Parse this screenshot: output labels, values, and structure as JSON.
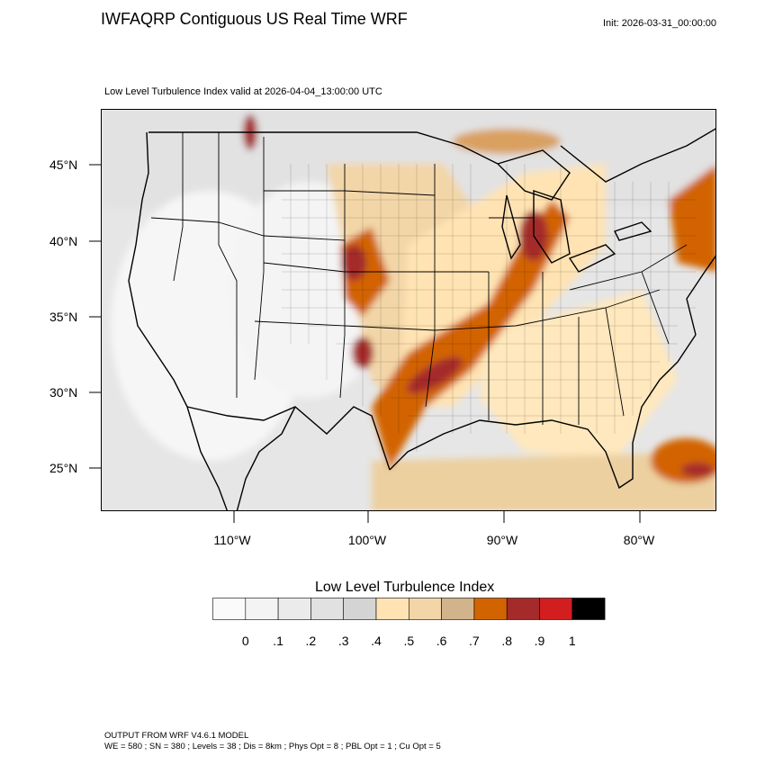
{
  "header": {
    "title": "IWFAQRP Contiguous US Real Time WRF",
    "init": "Init: 2026-03-31_00:00:00",
    "subtitle": "Low Level Turbulence Index valid at 2026-04-04_13:00:00 UTC"
  },
  "axes": {
    "lat_labels": [
      "45°N",
      "40°N",
      "35°N",
      "30°N",
      "25°N"
    ],
    "lon_labels": [
      "110°W",
      "100°W",
      "90°W",
      "80°W"
    ]
  },
  "colorbar": {
    "title": "Low Level Turbulence Index",
    "labels": [
      "0",
      ".1",
      ".2",
      ".3",
      ".4",
      ".5",
      ".6",
      ".7",
      ".8",
      ".9",
      "1"
    ],
    "colors": [
      "#fafafa",
      "#f3f3f3",
      "#ebebeb",
      "#e1e1e1",
      "#d4d4d4",
      "#ffe3b3",
      "#f3d6a8",
      "#d2b48c",
      "#d26400",
      "#a52a2a",
      "#d21e1e",
      "#000000"
    ]
  },
  "footer": {
    "line1": "OUTPUT FROM WRF V4.6.1 MODEL",
    "line2": "WE = 580 ; SN = 380 ; Levels = 38 ; Dis = 8km ; Phys Opt = 8 ; PBL Opt = 1 ; Cu Opt = 5"
  }
}
